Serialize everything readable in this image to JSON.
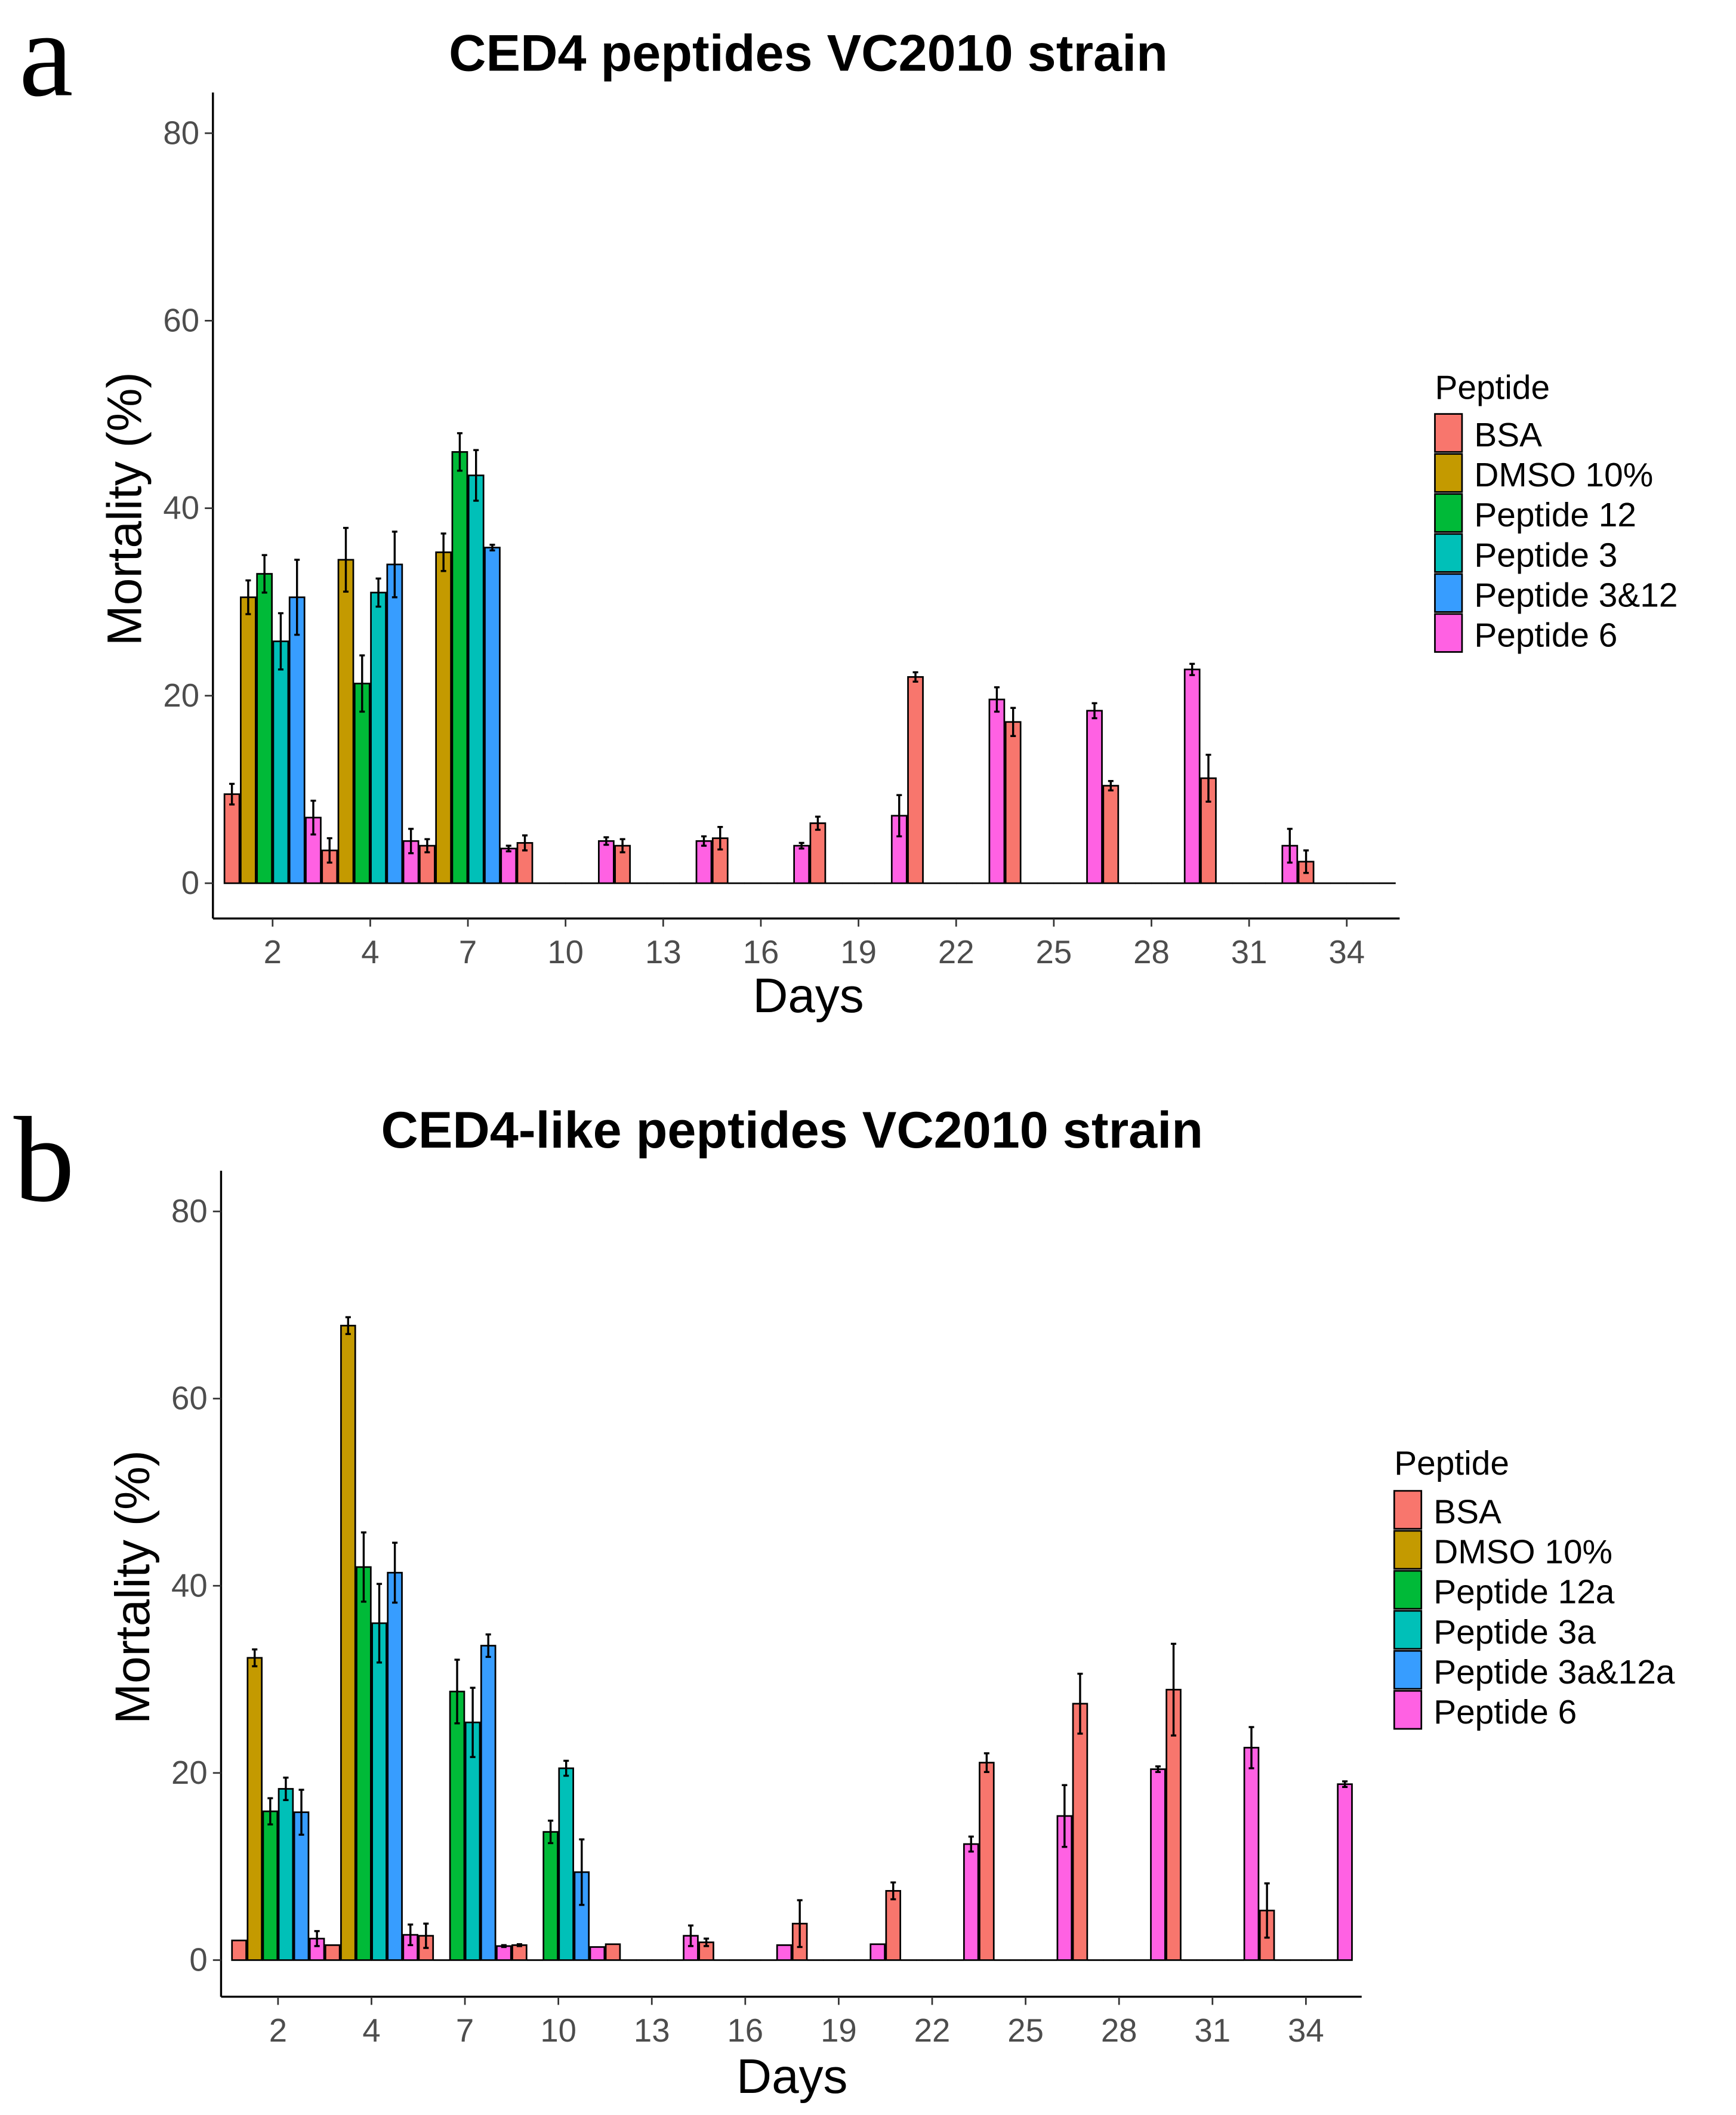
{
  "panel_labels": [
    "a",
    "b"
  ],
  "chart_data": [
    {
      "type": "bar",
      "title": "CED4 peptides VC2010 strain",
      "xlabel": "Days",
      "ylabel": "Mortality (%)",
      "ylim": [
        0,
        80
      ],
      "yticks": [
        0,
        20,
        40,
        60,
        80
      ],
      "grid": false,
      "legend_title": "Peptide",
      "legend_placement": "right",
      "categories": [
        "2",
        "4",
        "7",
        "10",
        "13",
        "16",
        "19",
        "22",
        "25",
        "28",
        "31",
        "34"
      ],
      "series": [
        {
          "name": "BSA",
          "color": "#F8766D",
          "values": [
            9.5,
            3.5,
            4.0,
            4.3,
            4.0,
            4.8,
            6.4,
            22.0,
            17.2,
            10.4,
            11.2,
            2.3
          ],
          "errors": [
            1.1,
            1.3,
            0.7,
            0.8,
            0.7,
            1.2,
            0.7,
            0.5,
            1.5,
            0.5,
            2.5,
            1.2
          ]
        },
        {
          "name": "DMSO 10%",
          "color": "#C49A00",
          "values": [
            30.5,
            34.5,
            35.3,
            0,
            0,
            0,
            0,
            0,
            0,
            0,
            0,
            0
          ],
          "errors": [
            1.8,
            3.4,
            2.0,
            0,
            0,
            0,
            0,
            0,
            0,
            0,
            0,
            0
          ]
        },
        {
          "name": "Peptide 12",
          "color": "#00BA38",
          "values": [
            33.0,
            21.3,
            46.0,
            0,
            0,
            0,
            0,
            0,
            0,
            0,
            0,
            0
          ],
          "errors": [
            2.0,
            3.0,
            2.0,
            0,
            0,
            0,
            0,
            0,
            0,
            0,
            0,
            0
          ]
        },
        {
          "name": "Peptide 3",
          "color": "#00C0B8",
          "values": [
            25.8,
            31.0,
            43.5,
            0,
            0,
            0,
            0,
            0,
            0,
            0,
            0,
            0
          ],
          "errors": [
            3.0,
            1.5,
            2.7,
            0,
            0,
            0,
            0,
            0,
            0,
            0,
            0,
            0
          ]
        },
        {
          "name": "Peptide 3&12",
          "color": "#379DFF",
          "values": [
            30.5,
            34.0,
            35.8,
            0,
            0,
            0,
            0,
            0,
            0,
            0,
            0,
            0
          ],
          "errors": [
            4.0,
            3.5,
            0.3,
            0,
            0,
            0,
            0,
            0,
            0,
            0,
            0,
            0
          ]
        },
        {
          "name": "Peptide 6",
          "color": "#FF61E3",
          "values": [
            7.0,
            4.5,
            3.7,
            4.5,
            4.5,
            4.0,
            7.2,
            19.6,
            18.4,
            22.8,
            4.0,
            0
          ],
          "errors": [
            1.8,
            1.3,
            0.3,
            0.4,
            0.5,
            0.3,
            2.2,
            1.3,
            0.8,
            0.6,
            1.8,
            0
          ]
        }
      ]
    },
    {
      "type": "bar",
      "title": "CED4-like peptides VC2010 strain",
      "xlabel": "Days",
      "ylabel": "Mortality (%)",
      "ylim": [
        0,
        80
      ],
      "yticks": [
        0,
        20,
        40,
        60,
        80
      ],
      "grid": false,
      "legend_title": "Peptide",
      "legend_placement": "right",
      "categories": [
        "2",
        "4",
        "7",
        "10",
        "13",
        "16",
        "19",
        "22",
        "25",
        "28",
        "31",
        "34"
      ],
      "series": [
        {
          "name": "BSA",
          "color": "#F8766D",
          "values": [
            2.1,
            1.6,
            2.6,
            1.6,
            1.7,
            1.9,
            3.9,
            7.4,
            21.1,
            27.4,
            28.9,
            5.3
          ],
          "errors": [
            0,
            0,
            1.3,
            0.1,
            0,
            0.4,
            2.5,
            0.9,
            1.0,
            3.2,
            4.9,
            2.9
          ]
        },
        {
          "name": "DMSO 10%",
          "color": "#C49A00",
          "values": [
            32.3,
            67.8,
            0,
            0,
            0,
            0,
            0,
            0,
            0,
            0,
            0,
            0
          ],
          "errors": [
            0.9,
            0.9,
            0,
            0,
            0,
            0,
            0,
            0,
            0,
            0,
            0,
            0
          ]
        },
        {
          "name": "Peptide 12a",
          "color": "#00BA38",
          "values": [
            15.9,
            42.0,
            28.7,
            13.7,
            0,
            0,
            0,
            0,
            0,
            0,
            0,
            0
          ],
          "errors": [
            1.4,
            3.7,
            3.4,
            1.2,
            0,
            0,
            0,
            0,
            0,
            0,
            0,
            0
          ]
        },
        {
          "name": "Peptide 3a",
          "color": "#00C0B8",
          "values": [
            18.3,
            36.0,
            25.4,
            20.5,
            0,
            0,
            0,
            0,
            0,
            0,
            0,
            0
          ],
          "errors": [
            1.2,
            4.2,
            3.7,
            0.8,
            0,
            0,
            0,
            0,
            0,
            0,
            0,
            0
          ]
        },
        {
          "name": "Peptide 3a&12a",
          "color": "#379DFF",
          "values": [
            15.8,
            41.4,
            33.6,
            9.4,
            0,
            0,
            0,
            0,
            0,
            0,
            0,
            0
          ],
          "errors": [
            2.4,
            3.2,
            1.2,
            3.5,
            0,
            0,
            0,
            0,
            0,
            0,
            0,
            0
          ]
        },
        {
          "name": "Peptide 6",
          "color": "#FF61E3",
          "values": [
            2.3,
            2.7,
            1.5,
            1.4,
            2.6,
            1.6,
            1.7,
            12.4,
            15.4,
            20.4,
            22.7,
            18.8
          ],
          "errors": [
            0.8,
            1.1,
            0.1,
            0,
            1.1,
            0,
            0,
            0.8,
            3.3,
            0.3,
            2.2,
            0.3
          ]
        }
      ]
    }
  ]
}
